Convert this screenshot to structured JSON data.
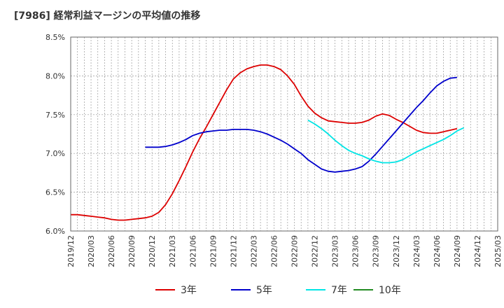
{
  "title": "[7986]  経常利益マージンの平均値の推移",
  "chart_data": {
    "type": "line",
    "title": "[7986]  経常利益マージンの平均値の推移",
    "xlabel": "",
    "ylabel": "",
    "ylim": [
      6.0,
      8.5
    ],
    "y_ticks": [
      "6.0%",
      "6.5%",
      "7.0%",
      "7.5%",
      "8.0%",
      "8.5%"
    ],
    "x_ticks": [
      "2019/12",
      "2020/03",
      "2020/06",
      "2020/09",
      "2020/12",
      "2021/03",
      "2021/06",
      "2021/09",
      "2021/12",
      "2022/03",
      "2022/06",
      "2022/09",
      "2022/12",
      "2023/03",
      "2023/06",
      "2023/09",
      "2023/12",
      "2024/03",
      "2024/06",
      "2024/09",
      "2024/12",
      "2025/03"
    ],
    "grid": true,
    "legend_position": "bottom",
    "series": [
      {
        "name": "3年",
        "color": "#dd0000",
        "points": [
          [
            "2019/12",
            6.21
          ],
          [
            "2020/01",
            6.21
          ],
          [
            "2020/02",
            6.2
          ],
          [
            "2020/03",
            6.19
          ],
          [
            "2020/04",
            6.18
          ],
          [
            "2020/05",
            6.17
          ],
          [
            "2020/06",
            6.15
          ],
          [
            "2020/07",
            6.14
          ],
          [
            "2020/08",
            6.14
          ],
          [
            "2020/09",
            6.15
          ],
          [
            "2020/10",
            6.16
          ],
          [
            "2020/11",
            6.17
          ],
          [
            "2020/12",
            6.19
          ],
          [
            "2021/01",
            6.24
          ],
          [
            "2021/02",
            6.34
          ],
          [
            "2021/03",
            6.48
          ],
          [
            "2021/04",
            6.65
          ],
          [
            "2021/05",
            6.83
          ],
          [
            "2021/06",
            7.02
          ],
          [
            "2021/07",
            7.19
          ],
          [
            "2021/08",
            7.34
          ],
          [
            "2021/09",
            7.5
          ],
          [
            "2021/10",
            7.66
          ],
          [
            "2021/11",
            7.82
          ],
          [
            "2021/12",
            7.96
          ],
          [
            "2022/01",
            8.04
          ],
          [
            "2022/02",
            8.09
          ],
          [
            "2022/03",
            8.12
          ],
          [
            "2022/04",
            8.14
          ],
          [
            "2022/05",
            8.14
          ],
          [
            "2022/06",
            8.12
          ],
          [
            "2022/07",
            8.08
          ],
          [
            "2022/08",
            8.0
          ],
          [
            "2022/09",
            7.89
          ],
          [
            "2022/10",
            7.74
          ],
          [
            "2022/11",
            7.61
          ],
          [
            "2022/12",
            7.52
          ],
          [
            "2023/01",
            7.46
          ],
          [
            "2023/02",
            7.42
          ],
          [
            "2023/03",
            7.41
          ],
          [
            "2023/04",
            7.4
          ],
          [
            "2023/05",
            7.39
          ],
          [
            "2023/06",
            7.39
          ],
          [
            "2023/07",
            7.4
          ],
          [
            "2023/08",
            7.43
          ],
          [
            "2023/09",
            7.48
          ],
          [
            "2023/10",
            7.51
          ],
          [
            "2023/11",
            7.49
          ],
          [
            "2023/12",
            7.44
          ],
          [
            "2024/01",
            7.4
          ],
          [
            "2024/02",
            7.35
          ],
          [
            "2024/03",
            7.3
          ],
          [
            "2024/04",
            7.27
          ],
          [
            "2024/05",
            7.26
          ],
          [
            "2024/06",
            7.26
          ],
          [
            "2024/07",
            7.28
          ],
          [
            "2024/08",
            7.3
          ],
          [
            "2024/09",
            7.32
          ]
        ]
      },
      {
        "name": "5年",
        "color": "#0000cc",
        "points": [
          [
            "2020/11",
            7.08
          ],
          [
            "2020/12",
            7.08
          ],
          [
            "2021/01",
            7.08
          ],
          [
            "2021/02",
            7.09
          ],
          [
            "2021/03",
            7.11
          ],
          [
            "2021/04",
            7.14
          ],
          [
            "2021/05",
            7.18
          ],
          [
            "2021/06",
            7.23
          ],
          [
            "2021/07",
            7.26
          ],
          [
            "2021/08",
            7.28
          ],
          [
            "2021/09",
            7.29
          ],
          [
            "2021/10",
            7.3
          ],
          [
            "2021/11",
            7.3
          ],
          [
            "2021/12",
            7.31
          ],
          [
            "2022/01",
            7.31
          ],
          [
            "2022/02",
            7.31
          ],
          [
            "2022/03",
            7.3
          ],
          [
            "2022/04",
            7.28
          ],
          [
            "2022/05",
            7.25
          ],
          [
            "2022/06",
            7.21
          ],
          [
            "2022/07",
            7.17
          ],
          [
            "2022/08",
            7.12
          ],
          [
            "2022/09",
            7.06
          ],
          [
            "2022/10",
            7.0
          ],
          [
            "2022/11",
            6.92
          ],
          [
            "2022/12",
            6.86
          ],
          [
            "2023/01",
            6.8
          ],
          [
            "2023/02",
            6.77
          ],
          [
            "2023/03",
            6.76
          ],
          [
            "2023/04",
            6.77
          ],
          [
            "2023/05",
            6.78
          ],
          [
            "2023/06",
            6.8
          ],
          [
            "2023/07",
            6.83
          ],
          [
            "2023/08",
            6.9
          ],
          [
            "2023/09",
            6.99
          ],
          [
            "2023/10",
            7.09
          ],
          [
            "2023/11",
            7.19
          ],
          [
            "2023/12",
            7.29
          ],
          [
            "2024/01",
            7.39
          ],
          [
            "2024/02",
            7.49
          ],
          [
            "2024/03",
            7.59
          ],
          [
            "2024/04",
            7.68
          ],
          [
            "2024/05",
            7.78
          ],
          [
            "2024/06",
            7.87
          ],
          [
            "2024/07",
            7.93
          ],
          [
            "2024/08",
            7.97
          ],
          [
            "2024/09",
            7.98
          ]
        ]
      },
      {
        "name": "7年",
        "color": "#00e5e5",
        "points": [
          [
            "2022/11",
            7.43
          ],
          [
            "2022/12",
            7.38
          ],
          [
            "2023/01",
            7.32
          ],
          [
            "2023/02",
            7.25
          ],
          [
            "2023/03",
            7.17
          ],
          [
            "2023/04",
            7.1
          ],
          [
            "2023/05",
            7.04
          ],
          [
            "2023/06",
            7.0
          ],
          [
            "2023/07",
            6.97
          ],
          [
            "2023/08",
            6.93
          ],
          [
            "2023/09",
            6.9
          ],
          [
            "2023/10",
            6.88
          ],
          [
            "2023/11",
            6.88
          ],
          [
            "2023/12",
            6.89
          ],
          [
            "2024/01",
            6.92
          ],
          [
            "2024/02",
            6.97
          ],
          [
            "2024/03",
            7.02
          ],
          [
            "2024/04",
            7.06
          ],
          [
            "2024/05",
            7.1
          ],
          [
            "2024/06",
            7.14
          ],
          [
            "2024/07",
            7.18
          ],
          [
            "2024/08",
            7.23
          ],
          [
            "2024/09",
            7.29
          ],
          [
            "2024/10",
            7.33
          ]
        ]
      },
      {
        "name": "10年",
        "color": "#228b22",
        "points": []
      }
    ]
  }
}
